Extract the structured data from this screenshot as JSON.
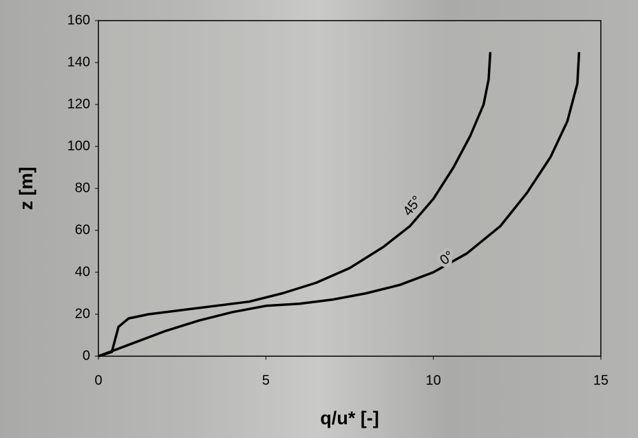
{
  "chart_data": {
    "type": "line",
    "xlabel": "q/u* [-]",
    "ylabel": "z [m]",
    "xlim": [
      0,
      15
    ],
    "xticks": [
      0,
      5,
      10,
      15
    ],
    "ylim": [
      0,
      160
    ],
    "yticks": [
      0,
      20,
      40,
      60,
      80,
      100,
      120,
      140,
      160
    ],
    "series": [
      {
        "name": "45°",
        "color": "#000000",
        "x": [
          0,
          0.4,
          0.5,
          0.6,
          0.9,
          1.5,
          2.5,
          3.5,
          4.5,
          5.5,
          6.5,
          7.5,
          8.5,
          9.3,
          10,
          10.6,
          11.1,
          11.5,
          11.65,
          11.7
        ],
        "values": [
          0,
          2,
          8,
          14,
          18,
          20,
          22,
          24,
          26,
          30,
          35,
          42,
          52,
          62,
          75,
          90,
          105,
          120,
          132,
          145
        ]
      },
      {
        "name": "0°",
        "color": "#000000",
        "x": [
          0,
          0.5,
          1,
          2,
          3,
          4,
          5,
          6,
          7,
          8,
          9,
          10,
          11,
          12,
          12.8,
          13.5,
          14,
          14.3,
          14.35
        ],
        "values": [
          0,
          3,
          6,
          12,
          17,
          21,
          24,
          25,
          27,
          30,
          34,
          40,
          49,
          62,
          78,
          95,
          112,
          130,
          145
        ]
      }
    ]
  }
}
